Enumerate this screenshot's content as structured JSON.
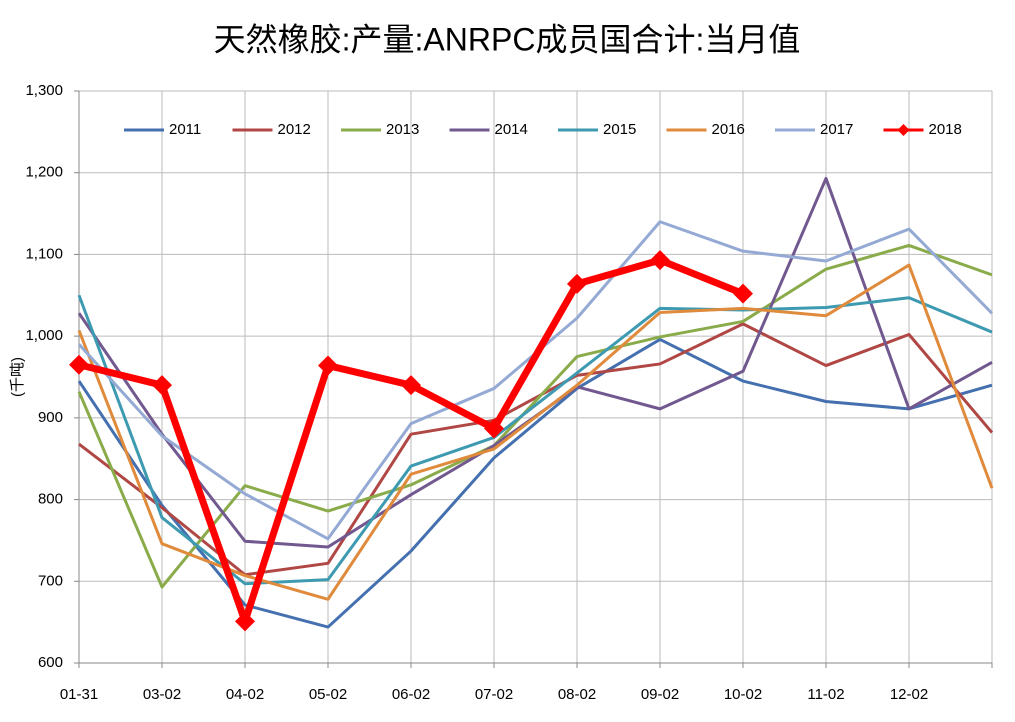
{
  "chart_data": {
    "type": "line",
    "title": "天然橡胶:产量:ANRPC成员国合计:当月值",
    "y_label": "(千吨)",
    "categories": [
      "01-31",
      "03-02",
      "04-02",
      "05-02",
      "06-02",
      "07-02",
      "08-02",
      "09-02",
      "10-02",
      "11-02",
      "12-02",
      null
    ],
    "series": [
      {
        "name": "2011",
        "color": "#4470b0",
        "values": [
          945,
          793,
          671,
          644,
          737,
          851,
          936,
          996,
          945,
          920,
          911,
          940
        ]
      },
      {
        "name": "2012",
        "color": "#b04744",
        "values": [
          868,
          790,
          708,
          722,
          880,
          897,
          952,
          966,
          1015,
          964,
          1002,
          882
        ]
      },
      {
        "name": "2013",
        "color": "#8aab4a",
        "values": [
          932,
          693,
          817,
          786,
          818,
          866,
          975,
          999,
          1018,
          1082,
          1111,
          1075
        ]
      },
      {
        "name": "2014",
        "color": "#71588f",
        "values": [
          1028,
          880,
          749,
          742,
          806,
          866,
          938,
          911,
          957,
          1193,
          911,
          968
        ]
      },
      {
        "name": "2015",
        "color": "#3d9ab0",
        "values": [
          1050,
          778,
          697,
          702,
          841,
          876,
          955,
          1034,
          1032,
          1035,
          1047,
          1005
        ]
      },
      {
        "name": "2016",
        "color": "#e08a3c",
        "values": [
          1007,
          746,
          707,
          678,
          831,
          862,
          940,
          1029,
          1034,
          1025,
          1087,
          814
        ]
      },
      {
        "name": "2017",
        "color": "#94aad4",
        "values": [
          990,
          878,
          807,
          752,
          893,
          936,
          1022,
          1140,
          1104,
          1092,
          1131,
          1028
        ]
      },
      {
        "name": "2018",
        "color": "#ff0000",
        "values": [
          965,
          940,
          651,
          964,
          940,
          887,
          1064,
          1093,
          1052,
          null,
          null,
          null
        ]
      }
    ],
    "ylim": [
      600,
      1300
    ],
    "yticks": [
      600,
      700,
      800,
      900,
      {
        "value": 1000,
        "label": "1,000"
      },
      {
        "value": 1100,
        "label": "1,100"
      },
      {
        "value": 1200,
        "label": "1,200"
      },
      {
        "value": 1300,
        "label": "1,300"
      }
    ],
    "grid": true,
    "legend": "top"
  }
}
